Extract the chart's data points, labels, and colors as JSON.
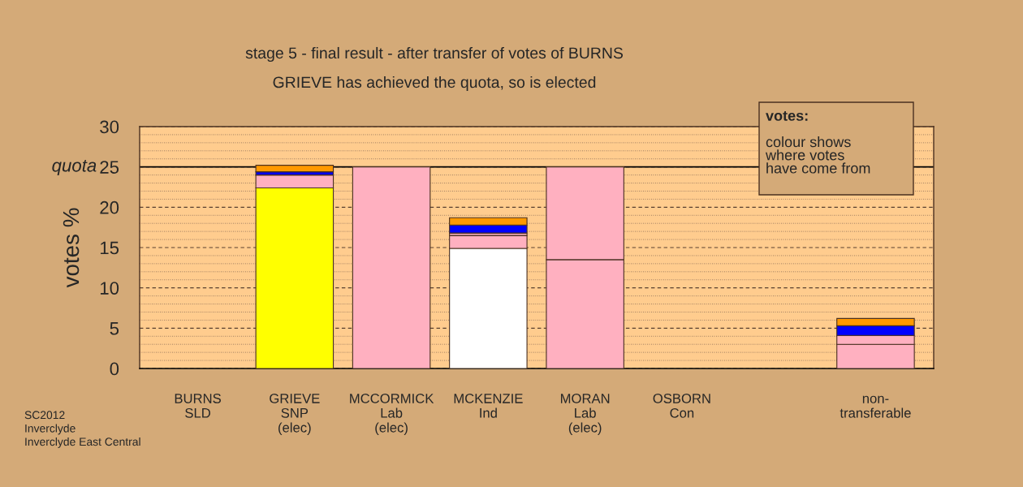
{
  "chart_data": {
    "type": "bar",
    "stacked": true,
    "title": "stage 5 - final result - after transfer of votes of BURNS",
    "subtitle": "GRIEVE has achieved the quota, so is elected",
    "ylabel": "votes %",
    "categories": [
      "BURNS\nSLD",
      "GRIEVE\nSNP\n(elec)",
      "MCCORMICK\nLab\n(elec)",
      "MCKENZIE\nInd",
      "MORAN\nLab\n(elec)",
      "OSBORN\nCon",
      null,
      "non-\ntransferable"
    ],
    "series": [
      {
        "colors": [
          "#ffb0c0",
          "#ffff00",
          "#ffb0c0",
          "#ffffff",
          "#ffb0c0",
          "#ffb0c0",
          "#ffb0c0",
          "#ffb0c0"
        ],
        "values": [
          null,
          22.4,
          25,
          14.9,
          13.5,
          null,
          null,
          3.0
        ]
      },
      {
        "colors": [
          "#ffb0c0",
          "#ffb0c0",
          "#ffb0c0",
          "#ffb0c0",
          "#ffb0c0",
          "#ffb0c0",
          "#ffb0c0",
          "#ffb0c0"
        ],
        "values": [
          null,
          1.6,
          null,
          1.6,
          11.5,
          null,
          null,
          1.1
        ]
      },
      {
        "colors": [
          "#ffb0c0",
          "#ffb0c0",
          "#ffb0c0",
          "#ffb0c0",
          "#ffb0c0",
          "#ffb0c0",
          "#ffb0c0",
          "#ffb0c0"
        ],
        "values": [
          null,
          null,
          null,
          0.3,
          null,
          null,
          null,
          null
        ]
      },
      {
        "colors": [
          "#0000ff",
          "#0000ff",
          "#0000ff",
          "#0000ff",
          "#0000ff",
          "#0000ff",
          "#0000ff",
          "#0000ff"
        ],
        "values": [
          null,
          0.4,
          null,
          1.0,
          null,
          null,
          null,
          1.2
        ]
      },
      {
        "colors": [
          "#ff9900",
          "#ff9900",
          "#ff9900",
          "#ff9900",
          "#ff9900",
          "#ff9900",
          "#ff9900",
          "#ff9900"
        ],
        "values": [
          null,
          0.8,
          null,
          0.9,
          null,
          null,
          null,
          0.9
        ]
      }
    ],
    "ylim": [
      0,
      30
    ],
    "yticks": [
      0,
      {
        "value": 1,
        "label": null
      },
      {
        "value": 2,
        "label": null
      },
      {
        "value": 3,
        "label": null
      },
      {
        "value": 4,
        "label": null
      },
      5,
      {
        "value": 6,
        "label": null
      },
      {
        "value": 7,
        "label": null
      },
      {
        "value": 8,
        "label": null
      },
      {
        "value": 9,
        "label": null
      },
      10,
      {
        "value": 11,
        "label": null
      },
      {
        "value": 12,
        "label": null
      },
      {
        "value": 13,
        "label": null
      },
      {
        "value": 14,
        "label": null
      },
      15,
      {
        "value": 16,
        "label": null
      },
      {
        "value": 17,
        "label": null
      },
      {
        "value": 18,
        "label": null
      },
      {
        "value": 19,
        "label": null
      },
      20,
      {
        "value": 21,
        "label": null
      },
      {
        "value": 22,
        "label": null
      },
      {
        "value": 23,
        "label": null
      },
      {
        "value": 24,
        "label": null
      },
      25,
      {
        "value": 26,
        "label": null
      },
      {
        "value": 27,
        "label": null
      },
      {
        "value": 28,
        "label": null
      },
      {
        "value": 29,
        "label": null
      },
      30
    ],
    "grid": "y",
    "ref_lines": [
      {
        "axis": "y",
        "value": 25,
        "label": "quota",
        "color": "#000000",
        "line_style": "solid"
      }
    ],
    "annotations": [
      "votes:",
      "colour shows\nwhere votes\nhave come from",
      "SC2012\nInverclyde\nInverclyde East Central"
    ]
  }
}
